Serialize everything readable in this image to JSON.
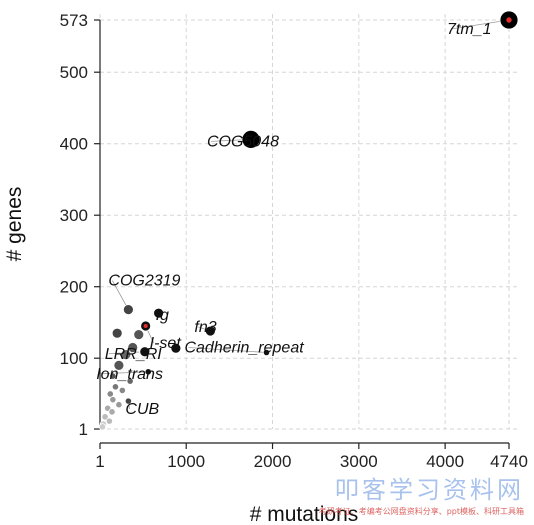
{
  "chart_data": {
    "type": "scatter",
    "title": "",
    "xlabel": "# mutations",
    "ylabel": "# genes",
    "xlim": [
      1,
      4740
    ],
    "ylim": [
      1,
      573
    ],
    "xticks": [
      1,
      1000,
      2000,
      3000,
      4000,
      4740
    ],
    "yticks": [
      1,
      100,
      200,
      300,
      400,
      500,
      573
    ],
    "grid": true,
    "points": [
      {
        "x": 4740,
        "y": 573,
        "size": "large",
        "color": "#000000",
        "highlight": true
      },
      {
        "x": 1750,
        "y": 406,
        "size": "large",
        "color": "#000000",
        "highlight": false
      },
      {
        "x": 330,
        "y": 168,
        "size": "medium",
        "color": "#444444",
        "highlight": false
      },
      {
        "x": 680,
        "y": 163,
        "size": "medium",
        "color": "#111111",
        "highlight": false
      },
      {
        "x": 530,
        "y": 145,
        "size": "medium",
        "color": "#111111",
        "highlight": true
      },
      {
        "x": 200,
        "y": 135,
        "size": "medium",
        "color": "#444444",
        "highlight": false
      },
      {
        "x": 450,
        "y": 133,
        "size": "medium",
        "color": "#555555",
        "highlight": false
      },
      {
        "x": 1280,
        "y": 138,
        "size": "medium",
        "color": "#111111",
        "highlight": false
      },
      {
        "x": 880,
        "y": 114,
        "size": "medium",
        "color": "#111111",
        "highlight": false
      },
      {
        "x": 1930,
        "y": 108,
        "size": "small",
        "color": "#111111",
        "highlight": false
      },
      {
        "x": 520,
        "y": 109,
        "size": "medium",
        "color": "#111111",
        "highlight": false
      },
      {
        "x": 380,
        "y": 115,
        "size": "medium",
        "color": "#555555",
        "highlight": false
      },
      {
        "x": 300,
        "y": 105,
        "size": "medium",
        "color": "#666666",
        "highlight": false
      },
      {
        "x": 220,
        "y": 90,
        "size": "medium",
        "color": "#555555",
        "highlight": false
      },
      {
        "x": 150,
        "y": 75,
        "size": "small",
        "color": "#555555",
        "highlight": false
      },
      {
        "x": 560,
        "y": 81,
        "size": "small",
        "color": "#111111",
        "highlight": false
      },
      {
        "x": 350,
        "y": 68,
        "size": "small",
        "color": "#666666",
        "highlight": false
      },
      {
        "x": 180,
        "y": 60,
        "size": "small",
        "color": "#777777",
        "highlight": false
      },
      {
        "x": 260,
        "y": 55,
        "size": "small",
        "color": "#888888",
        "highlight": false
      },
      {
        "x": 120,
        "y": 50,
        "size": "small",
        "color": "#888888",
        "highlight": false
      },
      {
        "x": 150,
        "y": 42,
        "size": "small",
        "color": "#999999",
        "highlight": false
      },
      {
        "x": 330,
        "y": 40,
        "size": "small",
        "color": "#444444",
        "highlight": false
      },
      {
        "x": 220,
        "y": 35,
        "size": "small",
        "color": "#999999",
        "highlight": false
      },
      {
        "x": 90,
        "y": 30,
        "size": "small",
        "color": "#aaaaaa",
        "highlight": false
      },
      {
        "x": 140,
        "y": 25,
        "size": "small",
        "color": "#aaaaaa",
        "highlight": false
      },
      {
        "x": 60,
        "y": 18,
        "size": "small",
        "color": "#bbbbbb",
        "highlight": false
      },
      {
        "x": 110,
        "y": 12,
        "size": "small",
        "color": "#bbbbbb",
        "highlight": false
      },
      {
        "x": 40,
        "y": 8,
        "size": "small",
        "color": "#cccccc",
        "highlight": false
      },
      {
        "x": 30,
        "y": 4,
        "size": "small",
        "color": "#cccccc",
        "highlight": false
      }
    ],
    "annotations": [
      {
        "text": "7tm_1",
        "x": 4740,
        "y": 573
      },
      {
        "text": "COG5048",
        "x": 1750,
        "y": 406
      },
      {
        "text": "COG2319",
        "x": 330,
        "y": 168
      },
      {
        "text": "Ig",
        "x": 680,
        "y": 163
      },
      {
        "text": "I-set",
        "x": 530,
        "y": 145
      },
      {
        "text": "fn3",
        "x": 1280,
        "y": 138
      },
      {
        "text": "LRR_RI",
        "x": 520,
        "y": 109
      },
      {
        "text": "Cadherin_repeat",
        "x": 1930,
        "y": 108
      },
      {
        "text": "Ion_trans",
        "x": 560,
        "y": 81
      },
      {
        "text": "CUB",
        "x": 330,
        "y": 40
      }
    ]
  },
  "watermark": {
    "main": "叩客学习资料网",
    "sub": "考研考证、考编考公网盘资料分享、ppt模板、科研工具箱"
  }
}
